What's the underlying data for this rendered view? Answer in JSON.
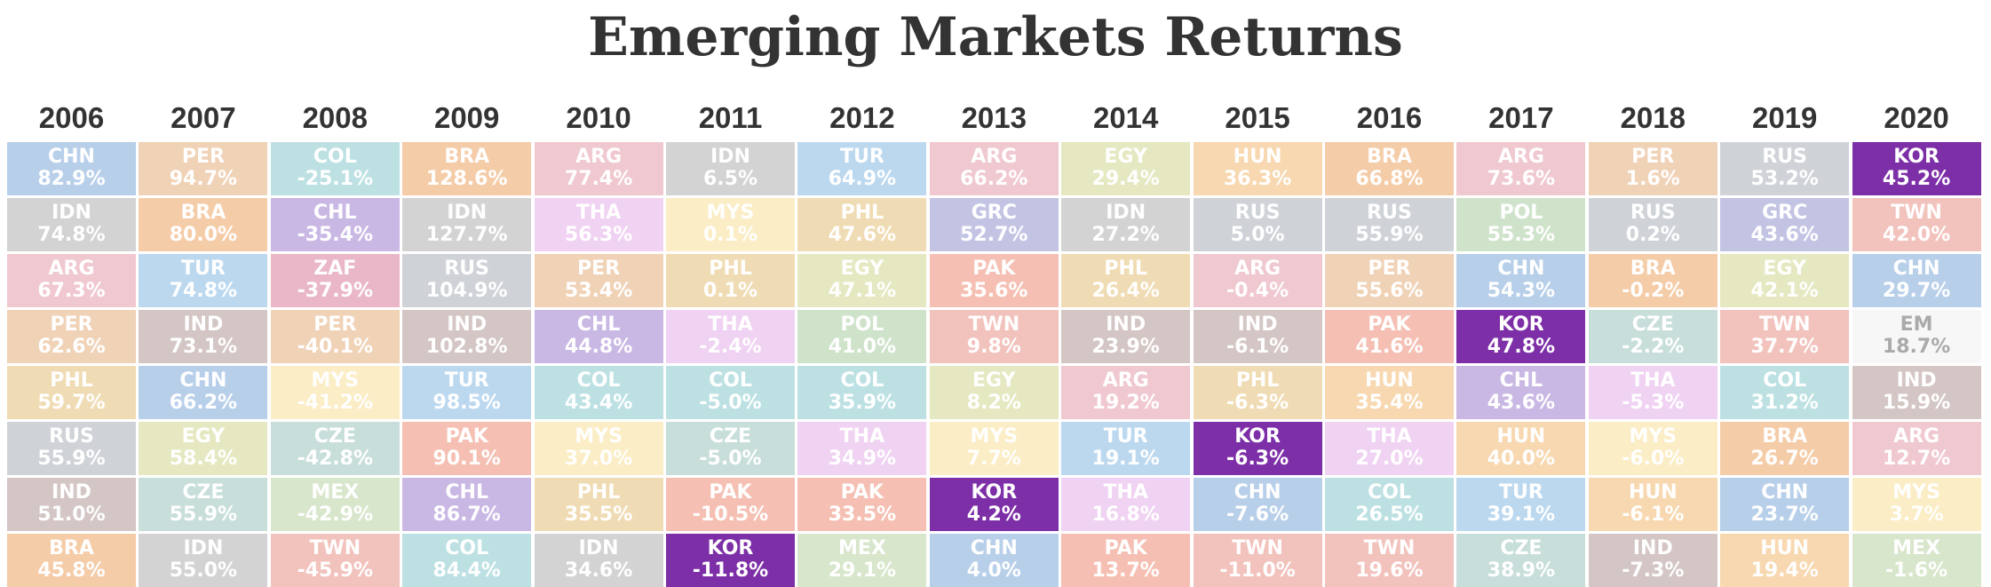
{
  "chart_data": {
    "type": "table",
    "title": "Emerging Markets Returns",
    "years": [
      "2006",
      "2007",
      "2008",
      "2009",
      "2010",
      "2011",
      "2012",
      "2013",
      "2014",
      "2015",
      "2016",
      "2017",
      "2018",
      "2019",
      "2020"
    ],
    "columns": [
      [
        [
          "CHN",
          "82.9%"
        ],
        [
          "IDN",
          "74.8%"
        ],
        [
          "ARG",
          "67.3%"
        ],
        [
          "PER",
          "62.6%"
        ],
        [
          "PHL",
          "59.7%"
        ],
        [
          "RUS",
          "55.9%"
        ],
        [
          "IND",
          "51.0%"
        ],
        [
          "BRA",
          "45.8%"
        ]
      ],
      [
        [
          "PER",
          "94.7%"
        ],
        [
          "BRA",
          "80.0%"
        ],
        [
          "TUR",
          "74.8%"
        ],
        [
          "IND",
          "73.1%"
        ],
        [
          "CHN",
          "66.2%"
        ],
        [
          "EGY",
          "58.4%"
        ],
        [
          "CZE",
          "55.9%"
        ],
        [
          "IDN",
          "55.0%"
        ]
      ],
      [
        [
          "COL",
          "-25.1%"
        ],
        [
          "CHL",
          "-35.4%"
        ],
        [
          "ZAF",
          "-37.9%"
        ],
        [
          "PER",
          "-40.1%"
        ],
        [
          "MYS",
          "-41.2%"
        ],
        [
          "CZE",
          "-42.8%"
        ],
        [
          "MEX",
          "-42.9%"
        ],
        [
          "TWN",
          "-45.9%"
        ]
      ],
      [
        [
          "BRA",
          "128.6%"
        ],
        [
          "IDN",
          "127.7%"
        ],
        [
          "RUS",
          "104.9%"
        ],
        [
          "IND",
          "102.8%"
        ],
        [
          "TUR",
          "98.5%"
        ],
        [
          "PAK",
          "90.1%"
        ],
        [
          "CHL",
          "86.7%"
        ],
        [
          "COL",
          "84.4%"
        ]
      ],
      [
        [
          "ARG",
          "77.4%"
        ],
        [
          "THA",
          "56.3%"
        ],
        [
          "PER",
          "53.4%"
        ],
        [
          "CHL",
          "44.8%"
        ],
        [
          "COL",
          "43.4%"
        ],
        [
          "MYS",
          "37.0%"
        ],
        [
          "PHL",
          "35.5%"
        ],
        [
          "IDN",
          "34.6%"
        ]
      ],
      [
        [
          "IDN",
          "6.5%"
        ],
        [
          "MYS",
          "0.1%"
        ],
        [
          "PHL",
          "0.1%"
        ],
        [
          "THA",
          "-2.4%"
        ],
        [
          "COL",
          "-5.0%"
        ],
        [
          "CZE",
          "-5.0%"
        ],
        [
          "PAK",
          "-10.5%"
        ],
        [
          "KOR",
          "-11.8%"
        ]
      ],
      [
        [
          "TUR",
          "64.9%"
        ],
        [
          "PHL",
          "47.6%"
        ],
        [
          "EGY",
          "47.1%"
        ],
        [
          "POL",
          "41.0%"
        ],
        [
          "COL",
          "35.9%"
        ],
        [
          "THA",
          "34.9%"
        ],
        [
          "PAK",
          "33.5%"
        ],
        [
          "MEX",
          "29.1%"
        ]
      ],
      [
        [
          "ARG",
          "66.2%"
        ],
        [
          "GRC",
          "52.7%"
        ],
        [
          "PAK",
          "35.6%"
        ],
        [
          "TWN",
          "9.8%"
        ],
        [
          "EGY",
          "8.2%"
        ],
        [
          "MYS",
          "7.7%"
        ],
        [
          "KOR",
          "4.2%"
        ],
        [
          "CHN",
          "4.0%"
        ]
      ],
      [
        [
          "EGY",
          "29.4%"
        ],
        [
          "IDN",
          "27.2%"
        ],
        [
          "PHL",
          "26.4%"
        ],
        [
          "IND",
          "23.9%"
        ],
        [
          "ARG",
          "19.2%"
        ],
        [
          "TUR",
          "19.1%"
        ],
        [
          "THA",
          "16.8%"
        ],
        [
          "PAK",
          "13.7%"
        ]
      ],
      [
        [
          "HUN",
          "36.3%"
        ],
        [
          "RUS",
          "5.0%"
        ],
        [
          "ARG",
          "-0.4%"
        ],
        [
          "IND",
          "-6.1%"
        ],
        [
          "PHL",
          "-6.3%"
        ],
        [
          "KOR",
          "-6.3%"
        ],
        [
          "CHN",
          "-7.6%"
        ],
        [
          "TWN",
          "-11.0%"
        ]
      ],
      [
        [
          "BRA",
          "66.8%"
        ],
        [
          "RUS",
          "55.9%"
        ],
        [
          "PER",
          "55.6%"
        ],
        [
          "PAK",
          "41.6%"
        ],
        [
          "HUN",
          "35.4%"
        ],
        [
          "THA",
          "27.0%"
        ],
        [
          "COL",
          "26.5%"
        ],
        [
          "TWN",
          "19.6%"
        ]
      ],
      [
        [
          "ARG",
          "73.6%"
        ],
        [
          "POL",
          "55.3%"
        ],
        [
          "CHN",
          "54.3%"
        ],
        [
          "KOR",
          "47.8%"
        ],
        [
          "CHL",
          "43.6%"
        ],
        [
          "HUN",
          "40.0%"
        ],
        [
          "TUR",
          "39.1%"
        ],
        [
          "CZE",
          "38.9%"
        ]
      ],
      [
        [
          "PER",
          "1.6%"
        ],
        [
          "RUS",
          "0.2%"
        ],
        [
          "BRA",
          "-0.2%"
        ],
        [
          "CZE",
          "-2.2%"
        ],
        [
          "THA",
          "-5.3%"
        ],
        [
          "MYS",
          "-6.0%"
        ],
        [
          "HUN",
          "-6.1%"
        ],
        [
          "IND",
          "-7.3%"
        ]
      ],
      [
        [
          "RUS",
          "53.2%"
        ],
        [
          "GRC",
          "43.6%"
        ],
        [
          "EGY",
          "42.1%"
        ],
        [
          "TWN",
          "37.7%"
        ],
        [
          "COL",
          "31.2%"
        ],
        [
          "BRA",
          "26.7%"
        ],
        [
          "CHN",
          "23.7%"
        ],
        [
          "HUN",
          "19.4%"
        ]
      ],
      [
        [
          "KOR",
          "45.2%"
        ],
        [
          "TWN",
          "42.0%"
        ],
        [
          "CHN",
          "29.7%"
        ],
        [
          "EM",
          "18.7%"
        ],
        [
          "IND",
          "15.9%"
        ],
        [
          "ARG",
          "12.7%"
        ],
        [
          "MYS",
          "3.7%"
        ],
        [
          "MEX",
          "-1.6%"
        ]
      ]
    ],
    "colors": {
      "CHN": "#b8cfea",
      "PER": "#f0d2b7",
      "COL": "#bde1e3",
      "BRA": "#f5cca8",
      "ARG": "#f0c8d0",
      "IDN": "#d3d3d3",
      "TUR": "#bcd8ef",
      "HUN": "#f7d8b0",
      "RUS": "#cfd3d8",
      "KOR": "#7d2fa7",
      "CHL": "#c9b8e4",
      "THA": "#f0d2f2",
      "MYS": "#fbedc5",
      "PHL": "#f0dcb4",
      "GRC": "#c3c4e4",
      "POL": "#cfe3cb",
      "TWN": "#f2c2bd",
      "ZAF": "#e9b7c8",
      "IND": "#d3c6c4",
      "EGY": "#e6e8c1",
      "PAK": "#f5c0b3",
      "CZE": "#c8dedb",
      "MEX": "#d8e6cc",
      "EM": "#f7f7f7"
    },
    "text_colors": {
      "EM": "#aaaaaa"
    }
  }
}
